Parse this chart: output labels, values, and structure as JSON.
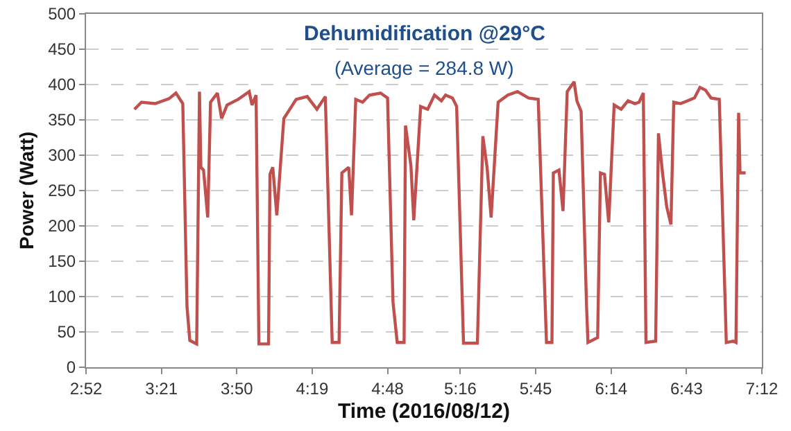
{
  "chart_data": {
    "type": "line",
    "title": "Dehumidification @29°C",
    "subtitle": "(Average = 284.8 W)",
    "xlabel": "Time (2016/08/12)",
    "ylabel": "Power (Watt)",
    "x": [
      3.177,
      3.222,
      3.31,
      3.399,
      3.443,
      3.487,
      3.514,
      3.532,
      3.576,
      3.594,
      3.603,
      3.62,
      3.647,
      3.665,
      3.709,
      3.736,
      3.771,
      3.842,
      3.913,
      3.931,
      3.957,
      3.975,
      4.037,
      4.046,
      4.064,
      4.09,
      4.135,
      4.214,
      4.285,
      4.347,
      4.401,
      4.445,
      4.489,
      4.507,
      4.551,
      4.569,
      4.596,
      4.64,
      4.684,
      4.755,
      4.8,
      4.835,
      4.862,
      4.906,
      4.915,
      4.95,
      4.968,
      5.012,
      5.057,
      5.101,
      5.145,
      5.172,
      5.216,
      5.243,
      5.287,
      5.376,
      5.411,
      5.438,
      5.464,
      5.509,
      5.571,
      5.633,
      5.704,
      5.766,
      5.819,
      5.854,
      5.863,
      5.899,
      5.925,
      5.952,
      5.996,
      6.014,
      6.041,
      6.076,
      6.085,
      6.147,
      6.165,
      6.191,
      6.218,
      6.253,
      6.298,
      6.342,
      6.386,
      6.413,
      6.44,
      6.457,
      6.519,
      6.537,
      6.564,
      6.59,
      6.617,
      6.635,
      6.679,
      6.723,
      6.768,
      6.803,
      6.839,
      6.874,
      6.927,
      6.972,
      7.016,
      7.034,
      7.051,
      7.06,
      7.096
    ],
    "series": [
      {
        "color": "#c0504d",
        "values": [
          365,
          375,
          373,
          380,
          388,
          373,
          86,
          38,
          33,
          390,
          283,
          279,
          212,
          375,
          388,
          352,
          371,
          379,
          390,
          371,
          385,
          33,
          33,
          273,
          283,
          215,
          352,
          379,
          383,
          365,
          383,
          35,
          35,
          275,
          283,
          215,
          379,
          375,
          385,
          388,
          381,
          92,
          35,
          35,
          342,
          285,
          208,
          369,
          365,
          385,
          377,
          385,
          381,
          369,
          34,
          34,
          327,
          283,
          212,
          375,
          385,
          390,
          381,
          379,
          35,
          35,
          275,
          279,
          221,
          390,
          404,
          377,
          362,
          86,
          35,
          42,
          275,
          273,
          205,
          371,
          365,
          377,
          373,
          375,
          388,
          35,
          37,
          331,
          273,
          227,
          202,
          375,
          373,
          377,
          381,
          396,
          392,
          381,
          379,
          35,
          37,
          35,
          360,
          275,
          275
        ]
      }
    ],
    "xlim": [
      2.8667,
      7.2
    ],
    "xticks": [
      {
        "value": 2.8667,
        "label": "2:52"
      },
      {
        "value": 3.35,
        "label": "3:21"
      },
      {
        "value": 3.8333,
        "label": "3:50"
      },
      {
        "value": 4.3167,
        "label": "4:19"
      },
      {
        "value": 4.8,
        "label": "4:48"
      },
      {
        "value": 5.2667,
        "label": "5:16"
      },
      {
        "value": 5.75,
        "label": "5:45"
      },
      {
        "value": 6.2333,
        "label": "6:14"
      },
      {
        "value": 6.7167,
        "label": "6:43"
      },
      {
        "value": 7.2,
        "label": "7:12"
      }
    ],
    "ylim": [
      0,
      500
    ],
    "yticks": [
      0,
      50,
      100,
      150,
      200,
      250,
      300,
      350,
      400,
      450,
      500
    ],
    "grid": "y",
    "marker": "none",
    "line_style": "solid"
  }
}
